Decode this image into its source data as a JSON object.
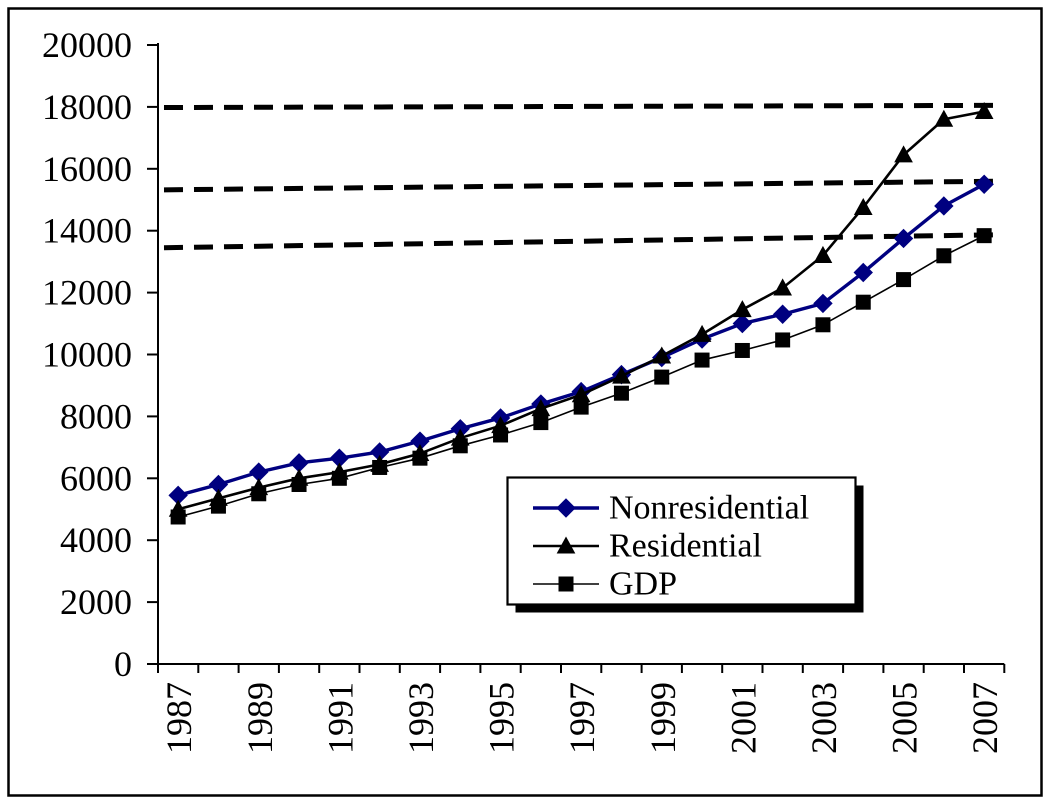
{
  "chart_data": {
    "type": "line",
    "title": "",
    "xlabel": "",
    "ylabel": "",
    "ylim": [
      0,
      20000
    ],
    "ytick_step": 2000,
    "ytick_labels": [
      "0",
      "2000",
      "4000",
      "6000",
      "8000",
      "10000",
      "12000",
      "14000",
      "16000",
      "18000",
      "20000"
    ],
    "xtick_labels": [
      "1987",
      "1989",
      "1991",
      "1993",
      "1995",
      "1997",
      "1999",
      "2001",
      "2003",
      "2005",
      "2007"
    ],
    "categories": [
      1987,
      1988,
      1989,
      1990,
      1991,
      1992,
      1993,
      1994,
      1995,
      1996,
      1997,
      1998,
      1999,
      2000,
      2001,
      2002,
      2003,
      2004,
      2005,
      2006,
      2007
    ],
    "grid": false,
    "series": [
      {
        "name": "GDP",
        "marker": "square",
        "color": "#000000",
        "line_width": 1.6,
        "values": [
          4750,
          5100,
          5500,
          5800,
          6000,
          6350,
          6650,
          7050,
          7400,
          7800,
          8300,
          8750,
          9270,
          9820,
          10130,
          10470,
          10960,
          11690,
          12420,
          13190,
          13840
        ]
      },
      {
        "name": "Nonresidential",
        "marker": "diamond",
        "color": "#000080",
        "line_width": 3.4,
        "values": [
          5450,
          5800,
          6200,
          6500,
          6650,
          6850,
          7200,
          7600,
          7950,
          8400,
          8800,
          9350,
          9900,
          10500,
          11000,
          11300,
          11650,
          12650,
          13750,
          14800,
          15500
        ]
      },
      {
        "name": "Residential",
        "marker": "triangle",
        "color": "#000000",
        "line_width": 2.6,
        "values": [
          5000,
          5350,
          5700,
          6000,
          6200,
          6450,
          6800,
          7300,
          7700,
          8250,
          8700,
          9300,
          9950,
          10650,
          11450,
          12150,
          13200,
          14750,
          16450,
          17600,
          17850
        ]
      }
    ],
    "reference_lines": [
      {
        "label": "residential-2007-level",
        "style": "dashed",
        "left_value": 17980,
        "right_value": 18050
      },
      {
        "label": "nonresidential-2007-level",
        "style": "dashed",
        "left_value": 15320,
        "right_value": 15600
      },
      {
        "label": "gdp-2007-level",
        "style": "dashed",
        "left_value": 13450,
        "right_value": 13870
      }
    ],
    "legend": {
      "position": "inside-lower-center",
      "entries": [
        "Nonresidential",
        "Residential",
        "GDP"
      ],
      "entry_series_index": [
        1,
        2,
        0
      ]
    }
  }
}
